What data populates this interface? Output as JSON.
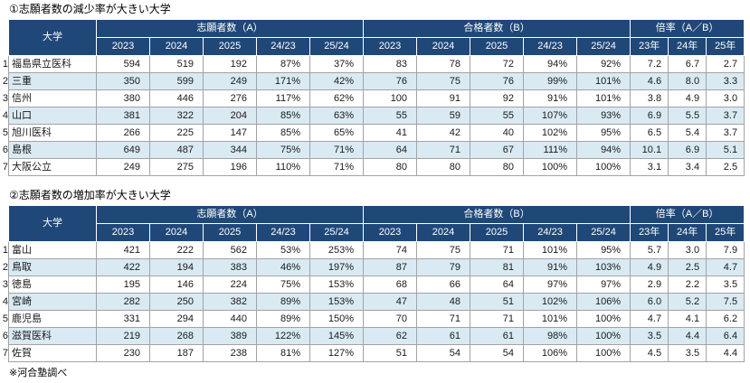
{
  "source_note": "※河合塾調べ",
  "colors": {
    "header_bg": "#1F4878",
    "header_text": "#FFFFFF",
    "alt_row_bg": "#D9EAF3",
    "grid_line": "#A3A3A3",
    "outer_border": "#1F3A60"
  },
  "tables": [
    {
      "title": "①志願者数の減少率が大きい大学",
      "headers": {
        "university": "大学",
        "group_a": "志願者数（A）",
        "group_b": "合格者数（B）",
        "group_ratio": "倍率（A／B）",
        "years": [
          "2023",
          "2024",
          "2025",
          "24/23",
          "25/24"
        ],
        "ratio_years": [
          "23年",
          "24年",
          "25年"
        ]
      },
      "rows": [
        {
          "rank": "1",
          "name": "福島県立医科",
          "values": [
            "594",
            "519",
            "192",
            "87%",
            "37%",
            "83",
            "78",
            "72",
            "94%",
            "92%",
            "7.2",
            "6.7",
            "2.7"
          ]
        },
        {
          "rank": "2",
          "name": "三重",
          "values": [
            "350",
            "599",
            "249",
            "171%",
            "42%",
            "76",
            "75",
            "76",
            "99%",
            "101%",
            "4.6",
            "8.0",
            "3.3"
          ]
        },
        {
          "rank": "3",
          "name": "信州",
          "values": [
            "380",
            "446",
            "276",
            "117%",
            "62%",
            "100",
            "91",
            "92",
            "91%",
            "101%",
            "3.8",
            "4.9",
            "3.0"
          ]
        },
        {
          "rank": "4",
          "name": "山口",
          "values": [
            "381",
            "322",
            "204",
            "85%",
            "63%",
            "55",
            "59",
            "55",
            "107%",
            "93%",
            "6.9",
            "5.5",
            "3.7"
          ]
        },
        {
          "rank": "5",
          "name": "旭川医科",
          "values": [
            "266",
            "225",
            "147",
            "85%",
            "65%",
            "41",
            "42",
            "40",
            "102%",
            "95%",
            "6.5",
            "5.4",
            "3.7"
          ]
        },
        {
          "rank": "6",
          "name": "島根",
          "values": [
            "649",
            "487",
            "344",
            "75%",
            "71%",
            "64",
            "71",
            "67",
            "111%",
            "94%",
            "10.1",
            "6.9",
            "5.1"
          ]
        },
        {
          "rank": "7",
          "name": "大阪公立",
          "values": [
            "249",
            "275",
            "196",
            "110%",
            "71%",
            "80",
            "80",
            "80",
            "100%",
            "100%",
            "3.1",
            "3.4",
            "2.5"
          ]
        }
      ]
    },
    {
      "title": "②志願者数の増加率が大きい大学",
      "headers": {
        "university": "大学",
        "group_a": "志願者数（A）",
        "group_b": "合格者数（B）",
        "group_ratio": "倍率（A／B）",
        "years": [
          "2023",
          "2024",
          "2025",
          "24/23",
          "25/24"
        ],
        "ratio_years": [
          "23年",
          "24年",
          "25年"
        ]
      },
      "rows": [
        {
          "rank": "1",
          "name": "富山",
          "values": [
            "421",
            "222",
            "562",
            "53%",
            "253%",
            "74",
            "75",
            "71",
            "101%",
            "95%",
            "5.7",
            "3.0",
            "7.9"
          ]
        },
        {
          "rank": "2",
          "name": "鳥取",
          "values": [
            "422",
            "194",
            "383",
            "46%",
            "197%",
            "87",
            "79",
            "81",
            "91%",
            "103%",
            "4.9",
            "2.5",
            "4.7"
          ]
        },
        {
          "rank": "3",
          "name": "徳島",
          "values": [
            "195",
            "146",
            "224",
            "75%",
            "153%",
            "68",
            "66",
            "64",
            "97%",
            "97%",
            "2.9",
            "2.2",
            "3.5"
          ]
        },
        {
          "rank": "4",
          "name": "宮崎",
          "values": [
            "282",
            "250",
            "382",
            "89%",
            "153%",
            "47",
            "48",
            "51",
            "102%",
            "106%",
            "6.0",
            "5.2",
            "7.5"
          ]
        },
        {
          "rank": "5",
          "name": "鹿児島",
          "values": [
            "331",
            "294",
            "440",
            "89%",
            "150%",
            "70",
            "71",
            "71",
            "101%",
            "100%",
            "4.7",
            "4.1",
            "6.2"
          ]
        },
        {
          "rank": "6",
          "name": "滋賀医科",
          "values": [
            "219",
            "268",
            "389",
            "122%",
            "145%",
            "62",
            "61",
            "61",
            "98%",
            "100%",
            "3.5",
            "4.4",
            "6.4"
          ]
        },
        {
          "rank": "7",
          "name": "佐賀",
          "values": [
            "230",
            "187",
            "238",
            "81%",
            "127%",
            "51",
            "54",
            "54",
            "106%",
            "100%",
            "4.5",
            "3.5",
            "4.4"
          ]
        }
      ]
    }
  ]
}
